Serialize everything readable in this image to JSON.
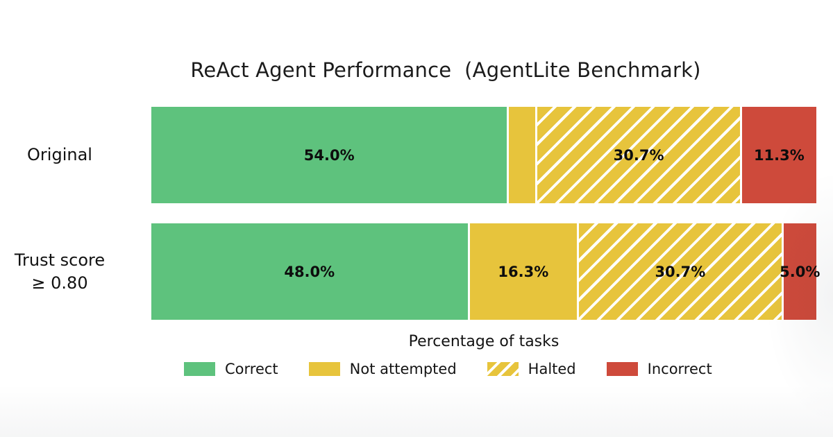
{
  "chart_data": {
    "type": "bar",
    "orientation": "horizontal",
    "stacked": true,
    "title": "ReAct Agent Performance  (AgentLite Benchmark)",
    "xlabel": "Percentage of tasks",
    "xlim": [
      0,
      100
    ],
    "grid": false,
    "legend_position": "bottom",
    "categories": [
      "Original",
      "Trust score\n≥ 0.80"
    ],
    "series": [
      {
        "name": "Correct",
        "color": "#5EC27D",
        "pattern": "solid",
        "values": [
          54.0,
          48.0
        ]
      },
      {
        "name": "Not attempted",
        "color": "#E7C43C",
        "pattern": "solid",
        "values": [
          4.0,
          16.3
        ]
      },
      {
        "name": "Halted",
        "color": "#E7C43C",
        "pattern": "diagonal-hatch",
        "hatch_color": "#ffffff",
        "values": [
          30.7,
          30.7
        ]
      },
      {
        "name": "Incorrect",
        "color": "#CE4A3B",
        "pattern": "solid",
        "values": [
          11.3,
          5.0
        ]
      }
    ],
    "bar_labels": [
      [
        "54.0%",
        null,
        "30.7%",
        "11.3%"
      ],
      [
        "48.0%",
        "16.3%",
        "30.7%",
        "5.0%"
      ]
    ]
  },
  "colors": {
    "correct": "#5EC27D",
    "not_attempted": "#E7C43C",
    "halted": "#E7C43C",
    "incorrect": "#CE4A3B",
    "text": "#111111",
    "background": "#ffffff"
  }
}
